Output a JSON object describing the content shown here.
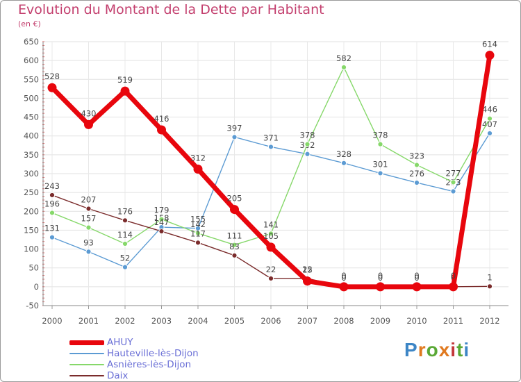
{
  "title": "Evolution du Montant de la Dette par Habitant",
  "subtitle": "(en €)",
  "logo": {
    "text": "Proxiti",
    "colors": [
      "#3d86c6",
      "#e0791f",
      "#5aa835",
      "#e0791f",
      "#c3373a",
      "#5aa835",
      "#3d86c6"
    ]
  },
  "chart_data": {
    "type": "line",
    "title": "Evolution du Montant de la Dette par Habitant",
    "subtitle": "(en €)",
    "xlabel": "",
    "ylabel": "",
    "x": [
      2000,
      2001,
      2002,
      2003,
      2004,
      2005,
      2006,
      2007,
      2008,
      2009,
      2010,
      2011,
      2012
    ],
    "ylim": [
      -50,
      650
    ],
    "yticks": [
      -50,
      0,
      50,
      100,
      150,
      200,
      250,
      300,
      350,
      400,
      450,
      500,
      550,
      600,
      650
    ],
    "grid": true,
    "legend_position": "bottom-left",
    "series": [
      {
        "name": "AHUY",
        "color": "#e8060d",
        "values": [
          528,
          430,
          519,
          416,
          312,
          205,
          105,
          15,
          0,
          0,
          0,
          0,
          614
        ]
      },
      {
        "name": "Hauteville-lès-Dijon",
        "color": "#5c9bd3",
        "values": [
          131,
          93,
          52,
          158,
          155,
          397,
          371,
          352,
          328,
          301,
          276,
          253,
          407
        ]
      },
      {
        "name": "Asnières-lès-Dijon",
        "color": "#86d86a",
        "values": [
          196,
          157,
          114,
          179,
          142,
          111,
          141,
          378,
          582,
          378,
          323,
          277,
          446
        ]
      },
      {
        "name": "Daix",
        "color": "#7b2c2c",
        "values": [
          243,
          207,
          176,
          147,
          117,
          83,
          22,
          22,
          0,
          0,
          0,
          0,
          1
        ]
      }
    ]
  }
}
